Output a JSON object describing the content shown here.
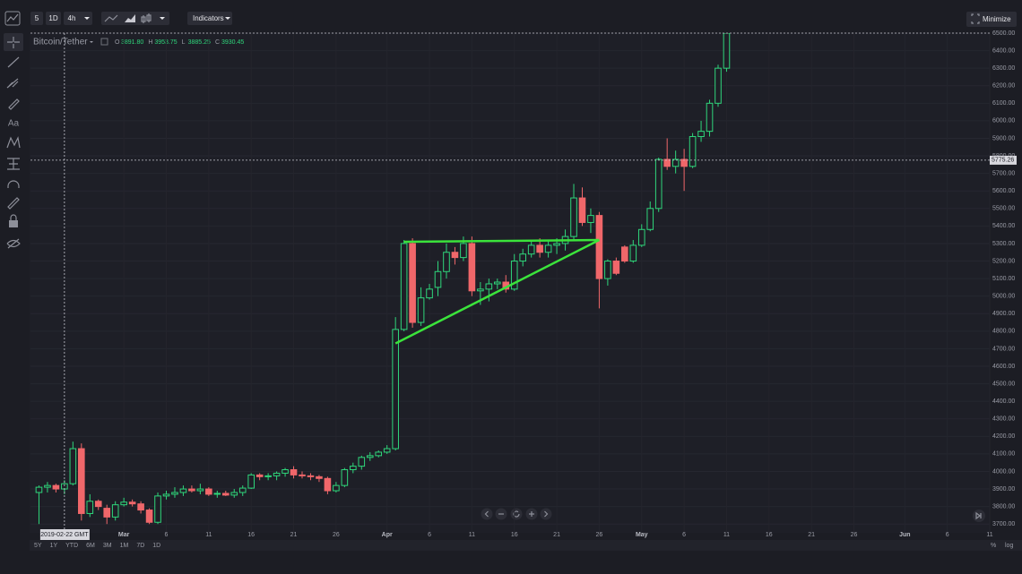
{
  "toolbar": {
    "intervals": [
      "5",
      "1D",
      "4h"
    ],
    "indicators": "Indicators",
    "minimize": "Minimize"
  },
  "left_toolbar": {
    "text_tool": "Aa"
  },
  "header": {
    "symbol": "Bitcoin/Tether",
    "ohlc": [
      {
        "key": "O",
        "value": "3891.80"
      },
      {
        "key": "H",
        "value": "3953.75"
      },
      {
        "key": "L",
        "value": "3885.25"
      },
      {
        "key": "C",
        "value": "3930.45"
      }
    ]
  },
  "ranges": [
    "5Y",
    "1Y",
    "YTD",
    "6M",
    "3M",
    "1M",
    "7D",
    "1D"
  ],
  "scale_options": [
    "%",
    "log"
  ],
  "chart_data": {
    "type": "candlestick",
    "x": [
      "2019-02-19",
      "2019-02-20",
      "2019-02-21",
      "2019-02-22",
      "2019-02-23",
      "2019-02-24",
      "2019-02-25",
      "2019-02-26",
      "2019-02-27",
      "2019-02-28",
      "2019-03-01",
      "2019-03-02",
      "2019-03-03",
      "2019-03-04",
      "2019-03-05",
      "2019-03-06",
      "2019-03-07",
      "2019-03-08",
      "2019-03-09",
      "2019-03-10",
      "2019-03-11",
      "2019-03-12",
      "2019-03-13",
      "2019-03-14",
      "2019-03-15",
      "2019-03-16",
      "2019-03-17",
      "2019-03-18",
      "2019-03-19",
      "2019-03-20",
      "2019-03-21",
      "2019-03-22",
      "2019-03-23",
      "2019-03-24",
      "2019-03-25",
      "2019-03-26",
      "2019-03-27",
      "2019-03-28",
      "2019-03-29",
      "2019-03-30",
      "2019-03-31",
      "2019-04-01",
      "2019-04-02",
      "2019-04-03",
      "2019-04-04",
      "2019-04-05",
      "2019-04-06",
      "2019-04-07",
      "2019-04-08",
      "2019-04-09",
      "2019-04-10",
      "2019-04-11",
      "2019-04-12",
      "2019-04-13",
      "2019-04-14",
      "2019-04-15",
      "2019-04-16",
      "2019-04-17",
      "2019-04-18",
      "2019-04-19",
      "2019-04-20",
      "2019-04-21",
      "2019-04-22",
      "2019-04-23",
      "2019-04-24",
      "2019-04-25",
      "2019-04-26",
      "2019-04-27",
      "2019-04-28",
      "2019-04-29",
      "2019-04-30",
      "2019-05-01",
      "2019-05-02",
      "2019-05-03",
      "2019-05-04",
      "2019-05-05",
      "2019-05-06",
      "2019-05-07",
      "2019-05-08",
      "2019-05-09",
      "2019-05-10",
      "2019-05-11"
    ],
    "series": [
      {
        "name": "Bitcoin/Tether",
        "up_color": "#2fd67b",
        "down_color": "#f0676a",
        "open": [
          3880,
          3910,
          3920,
          3900,
          3930,
          4130,
          3760,
          3830,
          3790,
          3740,
          3810,
          3825,
          3815,
          3780,
          3710,
          3860,
          3870,
          3880,
          3900,
          3890,
          3900,
          3870,
          3875,
          3865,
          3880,
          3905,
          3980,
          3970,
          3975,
          3990,
          4010,
          3980,
          3975,
          3970,
          3960,
          3890,
          3920,
          4010,
          4030,
          4080,
          4090,
          4110,
          4130,
          4810,
          5300,
          4850,
          4990,
          5050,
          5140,
          5250,
          5220,
          5300,
          5030,
          5040,
          5070,
          5080,
          5040,
          5200,
          5240,
          5290,
          5250,
          5290,
          5300,
          5340,
          5560,
          5420,
          5460,
          5100,
          5200,
          5280,
          5200,
          5290,
          5380,
          5500,
          5780,
          5740,
          5780,
          5740,
          5910,
          5940,
          6100,
          6300
        ],
        "high": [
          3920,
          3940,
          3930,
          3950,
          4170,
          4160,
          3870,
          3840,
          3810,
          3830,
          3850,
          3840,
          3830,
          3790,
          3880,
          3890,
          3910,
          3920,
          3920,
          3930,
          3910,
          3890,
          3890,
          3900,
          3920,
          3990,
          3990,
          3990,
          4000,
          4020,
          4030,
          4000,
          3990,
          3980,
          3970,
          3940,
          4020,
          4050,
          4090,
          4110,
          4120,
          4150,
          4880,
          5320,
          5330,
          5050,
          5070,
          5200,
          5300,
          5280,
          5340,
          5340,
          5080,
          5100,
          5100,
          5120,
          5240,
          5270,
          5310,
          5330,
          5320,
          5330,
          5380,
          5640,
          5620,
          5500,
          5480,
          5210,
          5220,
          5290,
          5320,
          5410,
          5540,
          5790,
          5900,
          5830,
          5840,
          5930,
          6000,
          6120,
          6320,
          6500
        ],
        "low": [
          3700,
          3880,
          3880,
          3870,
          3920,
          3720,
          3740,
          3780,
          3700,
          3720,
          3800,
          3800,
          3760,
          3700,
          3700,
          3840,
          3850,
          3860,
          3880,
          3870,
          3860,
          3850,
          3860,
          3850,
          3860,
          3900,
          3950,
          3950,
          3950,
          3970,
          3960,
          3960,
          3950,
          3940,
          3870,
          3880,
          3910,
          3990,
          4010,
          4060,
          4080,
          4100,
          4120,
          4800,
          4820,
          4830,
          4980,
          5000,
          5100,
          5180,
          5200,
          5000,
          4950,
          4970,
          5040,
          5020,
          5030,
          5170,
          5220,
          5220,
          5220,
          5240,
          5260,
          5320,
          5400,
          5360,
          4930,
          5060,
          5120,
          5190,
          5190,
          5280,
          5370,
          5480,
          5720,
          5700,
          5600,
          5730,
          5880,
          5910,
          6080,
          6280
        ],
        "close": [
          3910,
          3920,
          3900,
          3930,
          4130,
          3760,
          3830,
          3800,
          3740,
          3810,
          3825,
          3815,
          3780,
          3710,
          3860,
          3870,
          3880,
          3900,
          3890,
          3900,
          3870,
          3875,
          3865,
          3880,
          3905,
          3980,
          3970,
          3975,
          3990,
          4010,
          3980,
          3975,
          3970,
          3960,
          3890,
          3920,
          4010,
          4030,
          4080,
          4090,
          4110,
          4130,
          4810,
          5300,
          4850,
          4990,
          5040,
          5140,
          5250,
          5220,
          5300,
          5030,
          5040,
          5070,
          5080,
          5040,
          5200,
          5240,
          5290,
          5250,
          5290,
          5300,
          5340,
          5560,
          5420,
          5460,
          5100,
          5200,
          5130,
          5200,
          5290,
          5380,
          5500,
          5780,
          5740,
          5780,
          5740,
          5910,
          5940,
          6100,
          6300,
          6500
        ]
      }
    ],
    "drawings": [
      {
        "color": "#3be33b",
        "x": [
          "2019-04-03",
          "2019-04-26"
        ],
        "y": [
          5310,
          5320
        ]
      },
      {
        "color": "#3be33b",
        "x": [
          "2019-04-02",
          "2019-04-26"
        ],
        "y": [
          4730,
          5320
        ]
      }
    ],
    "crosshair": {
      "x": "2019-02-22",
      "x_label": "2019-02-22 GMT",
      "y": 5775.26
    },
    "xlim": [
      "2019-02-18",
      "2019-06-11"
    ],
    "xticks": [
      {
        "value": "2019-03-01",
        "label": "Mar"
      },
      {
        "value": "2019-03-06",
        "label": "6"
      },
      {
        "value": "2019-03-11",
        "label": "11"
      },
      {
        "value": "2019-03-16",
        "label": "16"
      },
      {
        "value": "2019-03-21",
        "label": "21"
      },
      {
        "value": "2019-03-26",
        "label": "26"
      },
      {
        "value": "2019-04-01",
        "label": "Apr"
      },
      {
        "value": "2019-04-06",
        "label": "6"
      },
      {
        "value": "2019-04-11",
        "label": "11"
      },
      {
        "value": "2019-04-16",
        "label": "16"
      },
      {
        "value": "2019-04-21",
        "label": "21"
      },
      {
        "value": "2019-04-26",
        "label": "26"
      },
      {
        "value": "2019-05-01",
        "label": "May"
      },
      {
        "value": "2019-05-06",
        "label": "6"
      },
      {
        "value": "2019-05-11",
        "label": "11"
      },
      {
        "value": "2019-05-16",
        "label": "16"
      },
      {
        "value": "2019-05-21",
        "label": "21"
      },
      {
        "value": "2019-05-26",
        "label": "26"
      },
      {
        "value": "2019-06-01",
        "label": "Jun"
      },
      {
        "value": "2019-06-06",
        "label": "6"
      },
      {
        "value": "2019-06-11",
        "label": "11"
      }
    ],
    "ylim": [
      3650,
      6500
    ],
    "yticks": [
      {
        "value": 3700,
        "label": "3700.00"
      },
      {
        "value": 3800,
        "label": "3800.00"
      },
      {
        "value": 3900,
        "label": "3900.00"
      },
      {
        "value": 4000,
        "label": "4000.00"
      },
      {
        "value": 4100,
        "label": "4100.00"
      },
      {
        "value": 4200,
        "label": "4200.00"
      },
      {
        "value": 4300,
        "label": "4300.00"
      },
      {
        "value": 4400,
        "label": "4400.00"
      },
      {
        "value": 4500,
        "label": "4500.00"
      },
      {
        "value": 4600,
        "label": "4600.00"
      },
      {
        "value": 4700,
        "label": "4700.00"
      },
      {
        "value": 4800,
        "label": "4800.00"
      },
      {
        "value": 4900,
        "label": "4900.00"
      },
      {
        "value": 5000,
        "label": "5000.00"
      },
      {
        "value": 5100,
        "label": "5100.00"
      },
      {
        "value": 5200,
        "label": "5200.00"
      },
      {
        "value": 5300,
        "label": "5300.00"
      },
      {
        "value": 5400,
        "label": "5400.00"
      },
      {
        "value": 5500,
        "label": "5500.00"
      },
      {
        "value": 5600,
        "label": "5600.00"
      },
      {
        "value": 5700,
        "label": "5700.00"
      },
      {
        "value": 5800,
        "label": "5800.00"
      },
      {
        "value": 5900,
        "label": "5900.00"
      },
      {
        "value": 6000,
        "label": "6000.00"
      },
      {
        "value": 6100,
        "label": "6100.00"
      },
      {
        "value": 6200,
        "label": "6200.00"
      },
      {
        "value": 6300,
        "label": "6300.00"
      },
      {
        "value": 6400,
        "label": "6400.00"
      },
      {
        "value": 6500,
        "label": "6500.00"
      }
    ],
    "grid": true
  }
}
